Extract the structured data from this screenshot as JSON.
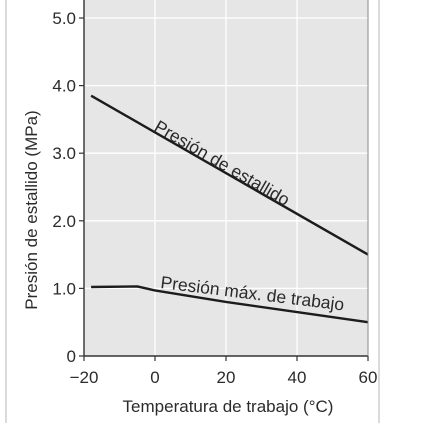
{
  "chart_data": {
    "type": "line",
    "title": "",
    "xlabel": "Temperatura de trabajo (°C)",
    "ylabel": "Presión de estallido (MPa)",
    "xlim": [
      -20,
      60
    ],
    "ylim": [
      0,
      5.0
    ],
    "x_ticks": [
      -20,
      0,
      20,
      40,
      60
    ],
    "x_tick_labels": [
      "−20",
      "0",
      "20",
      "40",
      "60"
    ],
    "y_ticks": [
      0,
      1.0,
      2.0,
      3.0,
      4.0,
      5.0
    ],
    "y_tick_labels": [
      "0",
      "1.0",
      "2.0",
      "3.0",
      "4.0",
      "5.0"
    ],
    "grid": true,
    "legend": "none",
    "colors": {
      "plot_background": "#e6e6e6",
      "grid": "#ffffff",
      "line": "#1c1c1c",
      "axis": "#333333"
    },
    "series": [
      {
        "name": "Presión de estallido",
        "x": [
          -18,
          60
        ],
        "y": [
          3.85,
          1.5
        ]
      },
      {
        "name": "Presión máx. de trabajo",
        "x": [
          -18,
          -5,
          0,
          20,
          40,
          60
        ],
        "y": [
          1.02,
          1.03,
          0.97,
          0.8,
          0.65,
          0.5
        ]
      }
    ]
  }
}
